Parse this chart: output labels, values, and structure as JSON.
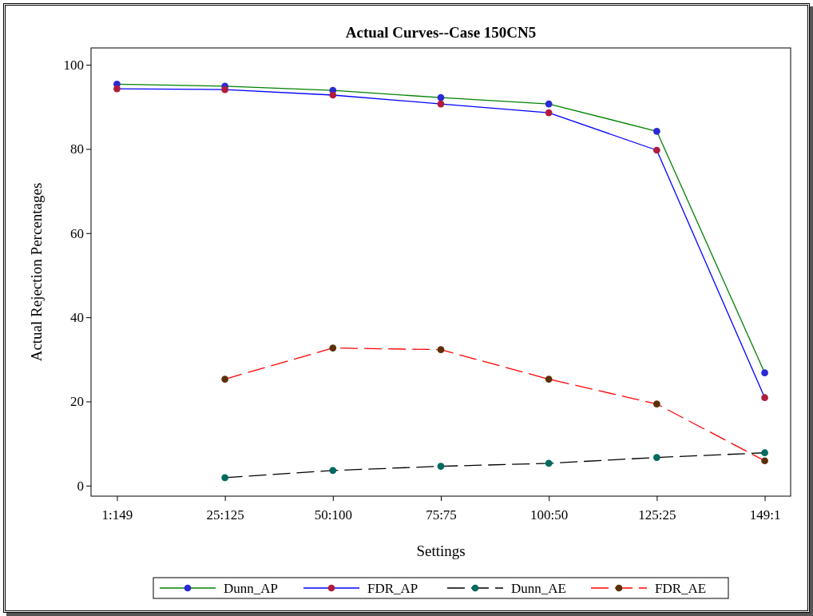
{
  "chart_data": {
    "type": "line",
    "title": "Actual Curves--Case 150CN5",
    "xlabel": "Settings",
    "ylabel": "Actual Rejection Percentages",
    "categories": [
      "1:149",
      "25:125",
      "50:100",
      "75:75",
      "100:50",
      "125:25",
      "149:1"
    ],
    "ylim": [
      -2.5,
      104
    ],
    "yticks": [
      0,
      20,
      40,
      60,
      80,
      100
    ],
    "grid": false,
    "legend": "bottom",
    "marker": "circle",
    "series": [
      {
        "name": "Dunn_AP",
        "color": "#008000",
        "colors": [
          "#2a2ad4",
          "#2a2ad4",
          "#2a2ad4",
          "#2a2ad4",
          "#2a2ad4",
          "#2a2ad4",
          "#2a2ad4"
        ],
        "line_style": "solid",
        "values": [
          95.4,
          94.9,
          93.9,
          92.2,
          90.7,
          84.2,
          26.8
        ]
      },
      {
        "name": "FDR_AP",
        "color": "#0000ff",
        "colors": [
          "#b01c3c",
          "#b01c3c",
          "#b01c3c",
          "#b01c3c",
          "#b01c3c",
          "#b01c3c",
          "#b01c3c"
        ],
        "line_style": "solid",
        "values": [
          94.3,
          94.1,
          92.8,
          90.7,
          88.6,
          79.7,
          20.9
        ]
      },
      {
        "name": "Dunn_AE",
        "color": "#000000",
        "colors": [
          "#006a5e",
          "#006a5e",
          "#006a5e",
          "#006a5e",
          "#006a5e",
          "#006a5e",
          "#006a5e"
        ],
        "line_style": "dashed",
        "values": [
          null,
          1.9,
          3.6,
          4.6,
          5.3,
          6.7,
          7.8
        ]
      },
      {
        "name": "FDR_AE",
        "color": "#ff0000",
        "colors": [
          "#5c3008",
          "#5c3008",
          "#5c3008",
          "#5c3008",
          "#5c3008",
          "#5c3008",
          "#5c3008"
        ],
        "line_style": "dashed",
        "values": [
          null,
          25.3,
          32.7,
          32.3,
          25.3,
          19.4,
          5.9
        ]
      }
    ]
  }
}
